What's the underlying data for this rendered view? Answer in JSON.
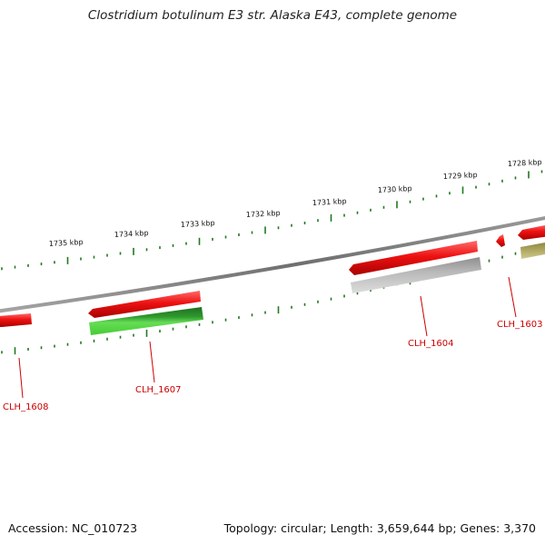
{
  "title": "Clostridium botulinum E3 str. Alaska E43, complete genome",
  "accession": "Accession: NC_010723",
  "summary": "Topology: circular; Length: 3,659,644 bp; Genes: 3,370",
  "scale_labels": [
    "1735 kbp",
    "1734 kbp",
    "1733 kbp",
    "1732 kbp",
    "1731 kbp",
    "1730 kbp",
    "1729 kbp",
    "1728 kbp"
  ],
  "gene_labels": [
    "CLH_1608",
    "CLH_1607",
    "CLH_1604",
    "CLH_1603"
  ],
  "colors": {
    "backbone": "#7a7a7a",
    "gene_forward": "#ee1111",
    "cds_green": "#2f9a2f",
    "cds_gray": "#b8b8b8",
    "cds_olive": "#a8a060",
    "ticks": "#1f7a1f",
    "label": "#cc0000"
  }
}
